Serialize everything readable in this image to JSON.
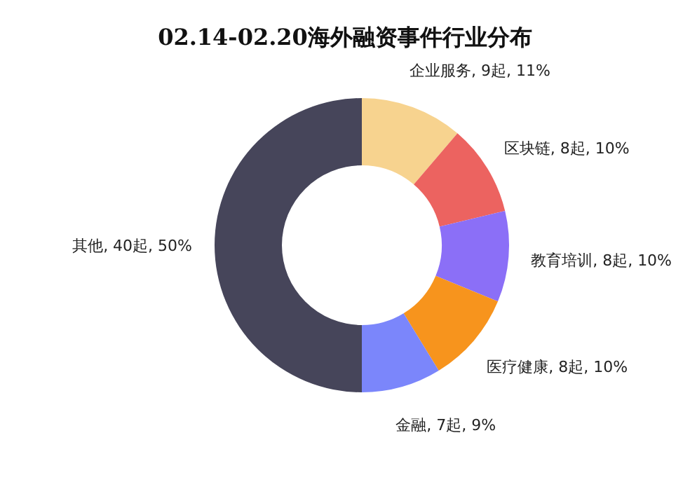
{
  "chart_data": {
    "type": "donut",
    "title": "02.14-02.20海外融资事件行业分布",
    "categories": [
      "企业服务",
      "区块链",
      "教育培训",
      "医疗健康",
      "金融",
      "其他"
    ],
    "values": [
      9,
      8,
      8,
      8,
      7,
      40
    ],
    "value_labels": [
      "9起, 11%",
      "8起, 10%",
      "8起, 10%",
      "8起, 10%",
      "7起, 9%",
      "40起, 50%"
    ],
    "colors": [
      "#f7d38f",
      "#ec6360",
      "#8b6ff7",
      "#f7941d",
      "#7b86fb",
      "#46455a"
    ]
  }
}
